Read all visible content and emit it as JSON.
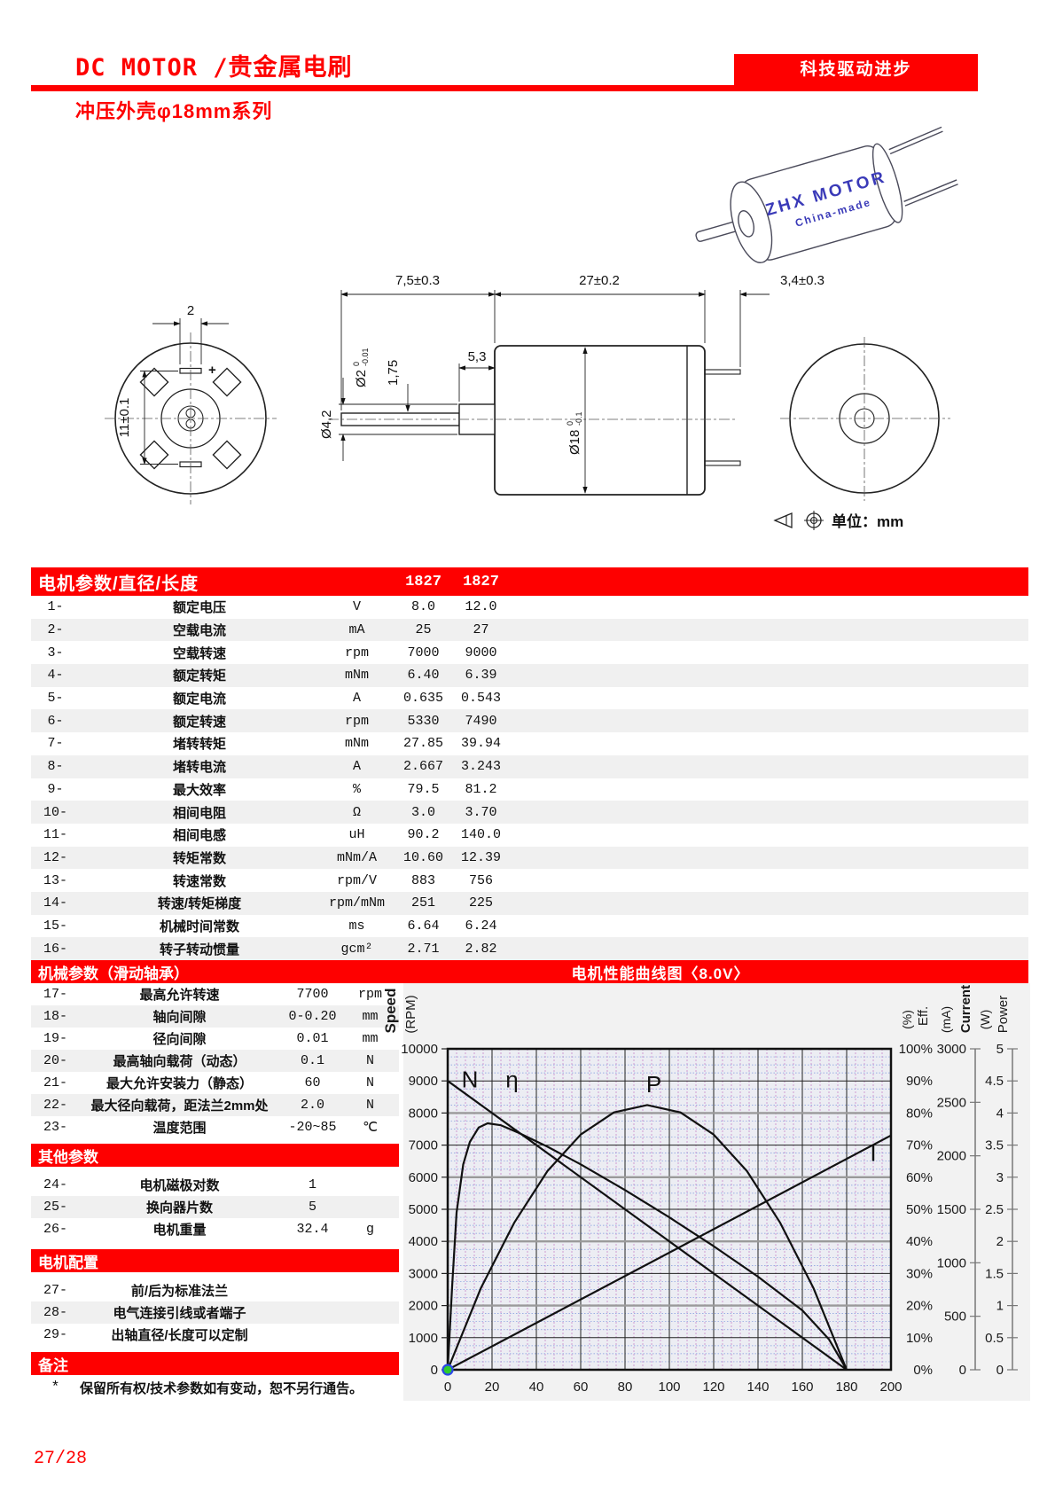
{
  "header": {
    "title": "DC MOTOR /贵金属电刷",
    "badge": "科技驱动进步",
    "subtitle": "冲压外壳φ18mm系列"
  },
  "motor": {
    "brand": "ZHX MOTOR",
    "origin": "China-made"
  },
  "drawing": {
    "front": {
      "width_dim": "2",
      "pins_dim": "11±0.1",
      "polarity": "+"
    },
    "side": {
      "shaft_len": "7,5±0.3",
      "body_len": "27±0.2",
      "pin_len": "3,4±0.3",
      "collar_len": "5,3",
      "step_len": "1,75",
      "shaft_dia": "Ø2",
      "shaft_tol_u": "0",
      "shaft_tol_l": "-0.01",
      "collar_dia": "Ø4,2",
      "body_dia": "Ø18",
      "body_tol_u": "0",
      "body_tol_l": "-0.1"
    },
    "unit_note": "单位：mm"
  },
  "table": {
    "header": {
      "title": "电机参数/直径/长度",
      "col1": "1827",
      "col2": "1827"
    },
    "rows": [
      {
        "no": "1-",
        "name": "额定电压",
        "unit": "V",
        "v1": "8.0",
        "v2": "12.0"
      },
      {
        "no": "2-",
        "name": "空载电流",
        "unit": "mA",
        "v1": "25",
        "v2": "27"
      },
      {
        "no": "3-",
        "name": "空载转速",
        "unit": "rpm",
        "v1": "7000",
        "v2": "9000"
      },
      {
        "no": "4-",
        "name": "额定转矩",
        "unit": "mNm",
        "v1": "6.40",
        "v2": "6.39"
      },
      {
        "no": "5-",
        "name": "额定电流",
        "unit": "A",
        "v1": "0.635",
        "v2": "0.543"
      },
      {
        "no": "6-",
        "name": "额定转速",
        "unit": "rpm",
        "v1": "5330",
        "v2": "7490"
      },
      {
        "no": "7-",
        "name": "堵转转矩",
        "unit": "mNm",
        "v1": "27.85",
        "v2": "39.94"
      },
      {
        "no": "8-",
        "name": "堵转电流",
        "unit": "A",
        "v1": "2.667",
        "v2": "3.243"
      },
      {
        "no": "9-",
        "name": "最大效率",
        "unit": "%",
        "v1": "79.5",
        "v2": "81.2"
      },
      {
        "no": "10-",
        "name": "相间电阻",
        "unit": "Ω",
        "v1": "3.0",
        "v2": "3.70"
      },
      {
        "no": "11-",
        "name": "相间电感",
        "unit": "uH",
        "v1": "90.2",
        "v2": "140.0"
      },
      {
        "no": "12-",
        "name": "转矩常数",
        "unit": "mNm/A",
        "v1": "10.60",
        "v2": "12.39"
      },
      {
        "no": "13-",
        "name": "转速常数",
        "unit": "rpm/V",
        "v1": "883",
        "v2": "756"
      },
      {
        "no": "14-",
        "name": "转速/转矩梯度",
        "unit": "rpm/mNm",
        "v1": "251",
        "v2": "225"
      },
      {
        "no": "15-",
        "name": "机械时间常数",
        "unit": "ms",
        "v1": "6.64",
        "v2": "6.24"
      },
      {
        "no": "16-",
        "name": "转子转动惯量",
        "unit": "gcm²",
        "v1": "2.71",
        "v2": "2.82"
      }
    ]
  },
  "mech": {
    "title": "机械参数（滑动轴承）",
    "rows": [
      {
        "no": "17-",
        "name": "最高允许转速",
        "v": "7700",
        "unit": "rpm"
      },
      {
        "no": "18-",
        "name": "轴向间隙",
        "v": "0-0.20",
        "unit": "mm"
      },
      {
        "no": "19-",
        "name": "径向间隙",
        "v": "0.01",
        "unit": "mm"
      },
      {
        "no": "20-",
        "name": "最高轴向载荷（动态）",
        "v": "0.1",
        "unit": "N"
      },
      {
        "no": "21-",
        "name": "最大允许安装力（静态）",
        "v": "60",
        "unit": "N"
      },
      {
        "no": "22-",
        "name": "最大径向载荷，距法兰2mm处",
        "v": "2.0",
        "unit": "N"
      },
      {
        "no": "23-",
        "name": "温度范围",
        "v": "-20~85",
        "unit": "℃"
      }
    ]
  },
  "other": {
    "title": "其他参数",
    "rows": [
      {
        "no": "24-",
        "name": "电机磁极对数",
        "v": "1",
        "unit": ""
      },
      {
        "no": "25-",
        "name": "换向器片数",
        "v": "5",
        "unit": ""
      },
      {
        "no": "26-",
        "name": "电机重量",
        "v": "32.4",
        "unit": "g"
      }
    ]
  },
  "config": {
    "title": "电机配置",
    "rows": [
      {
        "no": "27-",
        "name": "前/后为标准法兰"
      },
      {
        "no": "28-",
        "name": "电气连接引线或者端子"
      },
      {
        "no": "29-",
        "name": "出轴直径/长度可以定制"
      }
    ]
  },
  "remark": {
    "title": "备注",
    "star": "*",
    "text": "保留所有权/技术参数如有变动，恕不另行通告。"
  },
  "chart_data": {
    "type": "line",
    "title": "电机性能曲线图〈8.0V〉",
    "x": {
      "min": 0,
      "max": 200,
      "step": 20
    },
    "axes": {
      "speed": {
        "label": "Speed",
        "unit": "(RPM)",
        "min": 0,
        "max": 10000,
        "step": 1000
      },
      "eff": {
        "label": "Eff.",
        "unit": "(%)",
        "min": 0,
        "max": 100,
        "step": 10
      },
      "current": {
        "label": "Current",
        "unit": "(mA)",
        "min": 0,
        "max": 3000,
        "step": 500
      },
      "power": {
        "label": "Power",
        "unit": "(W)",
        "min": 0,
        "max": 5,
        "step": 0.5
      }
    },
    "series": [
      {
        "name": "N",
        "points": [
          [
            0,
            9000
          ],
          [
            180,
            0
          ]
        ],
        "label_at": [
          10,
          8800
        ]
      },
      {
        "name": "η",
        "points": [
          [
            0,
            0
          ],
          [
            2,
            2600
          ],
          [
            4,
            4900
          ],
          [
            7,
            6400
          ],
          [
            10,
            7100
          ],
          [
            14,
            7550
          ],
          [
            18,
            7680
          ],
          [
            24,
            7620
          ],
          [
            32,
            7380
          ],
          [
            45,
            6950
          ],
          [
            60,
            6400
          ],
          [
            80,
            5600
          ],
          [
            100,
            4750
          ],
          [
            120,
            3850
          ],
          [
            140,
            2900
          ],
          [
            160,
            1850
          ],
          [
            172,
            950
          ],
          [
            180,
            0
          ]
        ],
        "label_at": [
          29,
          8800
        ]
      },
      {
        "name": "P",
        "points": [
          [
            0,
            0
          ],
          [
            15,
            2550
          ],
          [
            30,
            4580
          ],
          [
            45,
            6190
          ],
          [
            60,
            7330
          ],
          [
            75,
            8020
          ],
          [
            90,
            8250
          ],
          [
            105,
            8020
          ],
          [
            120,
            7330
          ],
          [
            135,
            6190
          ],
          [
            150,
            4580
          ],
          [
            165,
            2550
          ],
          [
            180,
            0
          ]
        ],
        "label_at": [
          93,
          8650
        ]
      },
      {
        "name": "I",
        "points": [
          [
            0,
            0
          ],
          [
            200,
            7300
          ]
        ],
        "label_at": [
          192,
          6500
        ]
      }
    ],
    "origin_marker": {
      "x": 0,
      "y": 0
    },
    "grid": {
      "minor_x_every": 4,
      "minor_y_every": 250
    }
  },
  "footer": {
    "page": "27/28"
  }
}
